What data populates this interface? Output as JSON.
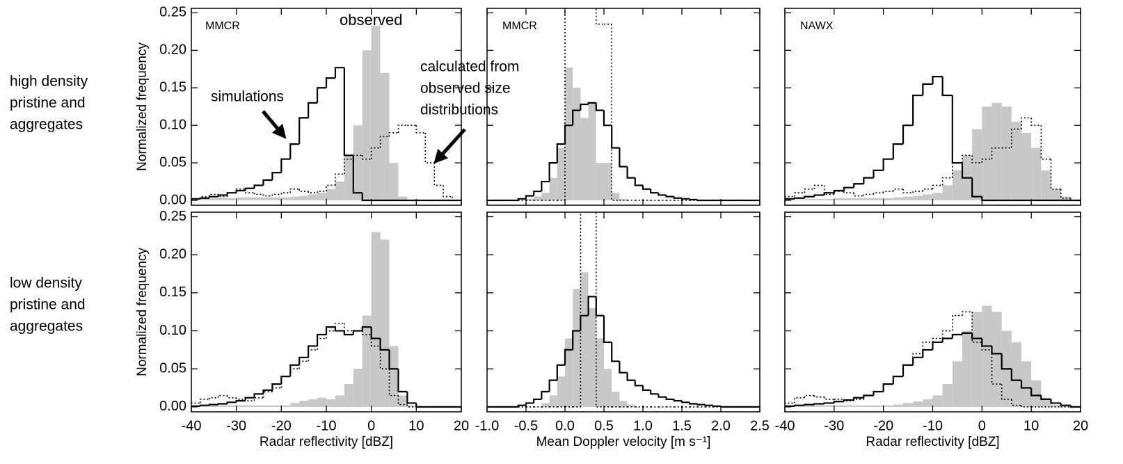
{
  "row_labels": [
    [
      "high density",
      "pristine and",
      "aggregates"
    ],
    [
      "low density",
      "pristine and",
      "aggregates"
    ]
  ],
  "chart_data": [
    {
      "type": "histogram",
      "ylabel": "Normalized frequency",
      "annotations": [
        "MMCR",
        "observed",
        "simulations",
        "calculated from",
        "observed size",
        "distributions"
      ],
      "bins": [
        -40,
        -38,
        -36,
        -34,
        -32,
        -30,
        -28,
        -26,
        -24,
        -22,
        -20,
        -18,
        -16,
        -14,
        -12,
        -10,
        -8,
        -6,
        -4,
        -2,
        0,
        2,
        4,
        6,
        8,
        10,
        12,
        14,
        16,
        18,
        20
      ],
      "xlim": [
        -40,
        20
      ],
      "xticks": [
        -40,
        -30,
        -20,
        -10,
        0,
        10,
        20
      ],
      "show_xtick_labels": false,
      "ylim": [
        -0.0065,
        0.256
      ],
      "yticks": [
        {
          "value": 0,
          "label": "0.00"
        },
        {
          "value": 0.05,
          "label": "0.05"
        },
        {
          "value": 0.1,
          "label": "0.10"
        },
        {
          "value": 0.15,
          "label": "0.15"
        },
        {
          "value": 0.2,
          "label": "0.20"
        },
        {
          "value": 0.25,
          "label": "0.25"
        }
      ],
      "show_ytick_labels": true,
      "series": [
        {
          "style": "filled",
          "color": "#c8c8c8",
          "values": [
            0.002,
            0.002,
            0.003,
            0.003,
            0.003,
            0.004,
            0.004,
            0.004,
            0.004,
            0.004,
            0.004,
            0.005,
            0.006,
            0.008,
            0.01,
            0.015,
            0.025,
            0.06,
            0.1,
            0.2,
            0.233,
            0.17,
            0.05,
            0.005,
            0,
            0,
            0,
            0,
            0,
            0
          ]
        },
        {
          "style": "solid",
          "color": "#000000",
          "values": [
            0.002,
            0.003,
            0.005,
            0.007,
            0.01,
            0.013,
            0.016,
            0.02,
            0.027,
            0.037,
            0.055,
            0.075,
            0.11,
            0.13,
            0.15,
            0.163,
            0.177,
            0.06,
            0.01,
            0,
            0,
            0,
            0,
            0,
            0,
            0,
            0,
            0,
            0,
            0
          ]
        },
        {
          "style": "dotted",
          "color": "#000000",
          "values": [
            0.002,
            0.005,
            0.008,
            0.005,
            0.01,
            0.015,
            0.01,
            0.008,
            0.006,
            0.008,
            0.01,
            0.015,
            0.012,
            0.01,
            0.012,
            0.02,
            0.035,
            0.055,
            0.06,
            0.055,
            0.07,
            0.085,
            0.09,
            0.1,
            0.1,
            0.09,
            0.05,
            0.02,
            0.005,
            0
          ]
        }
      ]
    },
    {
      "type": "histogram",
      "annotations": [
        "MMCR"
      ],
      "bins": [
        -1.0,
        -0.9,
        -0.8,
        -0.7,
        -0.6,
        -0.5,
        -0.4,
        -0.3,
        -0.2,
        -0.1,
        0.0,
        0.1,
        0.2,
        0.3,
        0.4,
        0.5,
        0.6,
        0.7,
        0.8,
        0.9,
        1.0,
        1.1,
        1.2,
        1.3,
        1.4,
        1.5,
        1.6,
        1.7,
        1.8,
        1.9,
        2.0,
        2.1,
        2.2,
        2.3,
        2.4,
        2.5
      ],
      "xlim": [
        -1.0,
        2.5
      ],
      "xticks": [
        {
          "value": -1,
          "label": "-1.0"
        },
        -0.5,
        {
          "value": 0,
          "label": "0.0"
        },
        0.5,
        {
          "value": 1,
          "label": "1.0"
        },
        1.5,
        {
          "value": 2,
          "label": "2.0"
        },
        2.5
      ],
      "show_xtick_labels": false,
      "ylim": [
        -0.0065,
        0.256
      ],
      "yticks": [
        0,
        0.05,
        0.1,
        0.15,
        0.2,
        0.25
      ],
      "show_ytick_labels": false,
      "series": [
        {
          "style": "filled",
          "color": "#c8c8c8",
          "values": [
            0,
            0,
            0,
            0,
            0,
            0.002,
            0.005,
            0.01,
            0.03,
            0.07,
            0.177,
            0.15,
            0.11,
            0.13,
            0.05,
            0.05,
            0.01,
            0.002,
            0,
            0,
            0,
            0,
            0,
            0,
            0,
            0,
            0,
            0,
            0,
            0,
            0,
            0,
            0,
            0,
            0
          ]
        },
        {
          "style": "solid",
          "color": "#000000",
          "values": [
            0,
            0,
            0,
            0,
            0.002,
            0.006,
            0.012,
            0.025,
            0.05,
            0.075,
            0.1,
            0.12,
            0.128,
            0.13,
            0.12,
            0.1,
            0.07,
            0.045,
            0.03,
            0.02,
            0.015,
            0.01,
            0.007,
            0.005,
            0.003,
            0.002,
            0.001,
            0,
            0,
            0,
            0,
            0,
            0,
            0,
            0
          ]
        },
        {
          "style": "dotted",
          "color": "#000000",
          "values": [
            0,
            0,
            0,
            0,
            0,
            0,
            0,
            0,
            0,
            0,
            0.26,
            0.26,
            0.26,
            0.26,
            0.235,
            0.235,
            0,
            0,
            0,
            0,
            0,
            0,
            0,
            0,
            0,
            0,
            0,
            0,
            0,
            0,
            0,
            0,
            0,
            0,
            0
          ]
        }
      ]
    },
    {
      "type": "histogram",
      "annotations": [
        "NAWX"
      ],
      "bins": [
        -40,
        -38,
        -36,
        -34,
        -32,
        -30,
        -28,
        -26,
        -24,
        -22,
        -20,
        -18,
        -16,
        -14,
        -12,
        -10,
        -8,
        -6,
        -4,
        -2,
        0,
        2,
        4,
        6,
        8,
        10,
        12,
        14,
        16,
        18,
        20
      ],
      "xlim": [
        -40,
        20
      ],
      "xticks": [
        -40,
        -30,
        -20,
        -10,
        0,
        10,
        20
      ],
      "show_xtick_labels": false,
      "ylim": [
        -0.0065,
        0.256
      ],
      "yticks": [
        0,
        0.05,
        0.1,
        0.15,
        0.2,
        0.25
      ],
      "show_ytick_labels": false,
      "series": [
        {
          "style": "filled",
          "color": "#c8c8c8",
          "values": [
            0.001,
            0.001,
            0.002,
            0.002,
            0.002,
            0.003,
            0.003,
            0.003,
            0.003,
            0.003,
            0.003,
            0.004,
            0.005,
            0.006,
            0.008,
            0.01,
            0.02,
            0.04,
            0.06,
            0.095,
            0.125,
            0.13,
            0.125,
            0.105,
            0.09,
            0.07,
            0.04,
            0.015,
            0.005,
            0.001
          ]
        },
        {
          "style": "solid",
          "color": "#000000",
          "values": [
            0.002,
            0.003,
            0.005,
            0.007,
            0.01,
            0.013,
            0.017,
            0.022,
            0.03,
            0.04,
            0.055,
            0.075,
            0.1,
            0.14,
            0.155,
            0.165,
            0.14,
            0.05,
            0.03,
            0.005,
            0,
            0,
            0,
            0,
            0,
            0,
            0,
            0,
            0,
            0
          ]
        },
        {
          "style": "dotted",
          "color": "#000000",
          "values": [
            0.005,
            0.01,
            0.015,
            0.02,
            0.008,
            0.012,
            0.01,
            0.006,
            0.008,
            0.01,
            0.012,
            0.015,
            0.01,
            0.012,
            0.015,
            0.02,
            0.03,
            0.05,
            0.06,
            0.05,
            0.055,
            0.07,
            0.07,
            0.095,
            0.11,
            0.1,
            0.055,
            0.015,
            0.003,
            0
          ]
        }
      ]
    },
    {
      "type": "histogram",
      "ylabel": "Normalized frequency",
      "xlabel": "Radar reflectivity [dBZ]",
      "bins": [
        -40,
        -38,
        -36,
        -34,
        -32,
        -30,
        -28,
        -26,
        -24,
        -22,
        -20,
        -18,
        -16,
        -14,
        -12,
        -10,
        -8,
        -6,
        -4,
        -2,
        0,
        2,
        4,
        6,
        8,
        10,
        12,
        14,
        16,
        18,
        20
      ],
      "xlim": [
        -40,
        20
      ],
      "xticks": [
        -40,
        -30,
        -20,
        -10,
        0,
        10,
        20
      ],
      "show_xtick_labels": true,
      "ylim": [
        -0.0065,
        0.256
      ],
      "yticks": [
        {
          "value": 0,
          "label": "0.00"
        },
        {
          "value": 0.05,
          "label": "0.05"
        },
        {
          "value": 0.1,
          "label": "0.10"
        },
        {
          "value": 0.15,
          "label": "0.15"
        },
        {
          "value": 0.2,
          "label": "0.20"
        },
        {
          "value": 0.25,
          "label": "0.25"
        }
      ],
      "show_ytick_labels": true,
      "series": [
        {
          "style": "filled",
          "color": "#c8c8c8",
          "values": [
            0.002,
            0.002,
            0.002,
            0.002,
            0.002,
            0.002,
            0.002,
            0.002,
            0.002,
            0.002,
            0.002,
            0.005,
            0.008,
            0.01,
            0.012,
            0.01,
            0.015,
            0.03,
            0.05,
            0.12,
            0.23,
            0.22,
            0.08,
            0.015,
            0.002,
            0,
            0,
            0,
            0,
            0
          ]
        },
        {
          "style": "solid",
          "color": "#000000",
          "values": [
            0.001,
            0.002,
            0.003,
            0.004,
            0.006,
            0.008,
            0.012,
            0.017,
            0.022,
            0.03,
            0.04,
            0.055,
            0.065,
            0.08,
            0.095,
            0.105,
            0.1,
            0.095,
            0.1,
            0.105,
            0.09,
            0.075,
            0.05,
            0.02,
            0.005,
            0,
            0,
            0,
            0,
            0
          ]
        },
        {
          "style": "dotted",
          "color": "#000000",
          "values": [
            0.005,
            0.01,
            0.012,
            0.015,
            0.012,
            0.01,
            0.008,
            0.012,
            0.02,
            0.025,
            0.04,
            0.05,
            0.06,
            0.075,
            0.09,
            0.1,
            0.11,
            0.1,
            0.1,
            0.095,
            0.08,
            0.05,
            0.015,
            0.003,
            0,
            0,
            0,
            0,
            0,
            0
          ]
        }
      ]
    },
    {
      "type": "histogram",
      "xlabel": "Mean Doppler velocity [m s⁻¹]",
      "bins": [
        -1.0,
        -0.9,
        -0.8,
        -0.7,
        -0.6,
        -0.5,
        -0.4,
        -0.3,
        -0.2,
        -0.1,
        0.0,
        0.1,
        0.2,
        0.3,
        0.4,
        0.5,
        0.6,
        0.7,
        0.8,
        0.9,
        1.0,
        1.1,
        1.2,
        1.3,
        1.4,
        1.5,
        1.6,
        1.7,
        1.8,
        1.9,
        2.0,
        2.1,
        2.2,
        2.3,
        2.4,
        2.5
      ],
      "xlim": [
        -1.0,
        2.5
      ],
      "xticks": [
        {
          "value": -1,
          "label": "-1.0"
        },
        -0.5,
        {
          "value": 0,
          "label": "0.0"
        },
        0.5,
        {
          "value": 1,
          "label": "1.0"
        },
        1.5,
        {
          "value": 2,
          "label": "2.0"
        },
        2.5
      ],
      "show_xtick_labels": true,
      "ylim": [
        -0.0065,
        0.256
      ],
      "yticks": [
        0,
        0.05,
        0.1,
        0.15,
        0.2,
        0.25
      ],
      "show_ytick_labels": false,
      "series": [
        {
          "style": "filled",
          "color": "#c8c8c8",
          "values": [
            0,
            0,
            0,
            0,
            0,
            0,
            0,
            0.005,
            0.015,
            0.04,
            0.09,
            0.155,
            0.177,
            0.13,
            0.09,
            0.05,
            0.02,
            0.008,
            0.003,
            0,
            0,
            0,
            0,
            0,
            0,
            0,
            0,
            0,
            0,
            0,
            0,
            0,
            0,
            0,
            0
          ]
        },
        {
          "style": "solid",
          "color": "#000000",
          "values": [
            0,
            0,
            0,
            0,
            0.002,
            0.005,
            0.01,
            0.02,
            0.035,
            0.055,
            0.075,
            0.1,
            0.12,
            0.145,
            0.12,
            0.085,
            0.06,
            0.045,
            0.035,
            0.028,
            0.022,
            0.017,
            0.013,
            0.01,
            0.008,
            0.006,
            0.004,
            0.003,
            0.002,
            0.001,
            0,
            0,
            0,
            0,
            0
          ]
        },
        {
          "style": "dotted",
          "color": "#000000",
          "values": [
            0,
            0,
            0,
            0,
            0,
            0,
            0,
            0,
            0,
            0,
            0,
            0,
            0.26,
            0.26,
            0,
            0,
            0,
            0,
            0,
            0,
            0,
            0,
            0,
            0,
            0,
            0,
            0,
            0,
            0,
            0,
            0,
            0,
            0,
            0,
            0
          ]
        }
      ]
    },
    {
      "type": "histogram",
      "xlabel": "Radar reflectivity [dBZ]",
      "bins": [
        -40,
        -38,
        -36,
        -34,
        -32,
        -30,
        -28,
        -26,
        -24,
        -22,
        -20,
        -18,
        -16,
        -14,
        -12,
        -10,
        -8,
        -6,
        -4,
        -2,
        0,
        2,
        4,
        6,
        8,
        10,
        12,
        14,
        16,
        18,
        20
      ],
      "xlim": [
        -40,
        20
      ],
      "xticks": [
        -40,
        -30,
        -20,
        -10,
        0,
        10,
        20
      ],
      "show_xtick_labels": true,
      "ylim": [
        -0.0065,
        0.256
      ],
      "yticks": [
        0,
        0.05,
        0.1,
        0.15,
        0.2,
        0.25
      ],
      "show_ytick_labels": false,
      "series": [
        {
          "style": "filled",
          "color": "#c8c8c8",
          "values": [
            0.002,
            0.002,
            0.002,
            0.002,
            0.002,
            0.002,
            0.002,
            0.002,
            0.002,
            0.002,
            0.002,
            0.003,
            0.005,
            0.007,
            0.01,
            0.015,
            0.03,
            0.06,
            0.1,
            0.125,
            0.133,
            0.125,
            0.1,
            0.085,
            0.06,
            0.035,
            0.012,
            0.003,
            0.001,
            0
          ]
        },
        {
          "style": "solid",
          "color": "#000000",
          "values": [
            0.001,
            0.002,
            0.003,
            0.004,
            0.005,
            0.007,
            0.009,
            0.012,
            0.015,
            0.02,
            0.03,
            0.04,
            0.055,
            0.065,
            0.075,
            0.085,
            0.09,
            0.095,
            0.097,
            0.09,
            0.08,
            0.07,
            0.05,
            0.035,
            0.025,
            0.015,
            0.01,
            0.005,
            0.002,
            0
          ]
        },
        {
          "style": "dotted",
          "color": "#000000",
          "values": [
            0.005,
            0.012,
            0.015,
            0.013,
            0.01,
            0.01,
            0.008,
            0.01,
            0.015,
            0.02,
            0.03,
            0.04,
            0.055,
            0.07,
            0.085,
            0.09,
            0.1,
            0.12,
            0.125,
            0.085,
            0.075,
            0.03,
            0.01,
            0.002,
            0,
            0,
            0,
            0,
            0,
            0
          ]
        }
      ]
    }
  ]
}
